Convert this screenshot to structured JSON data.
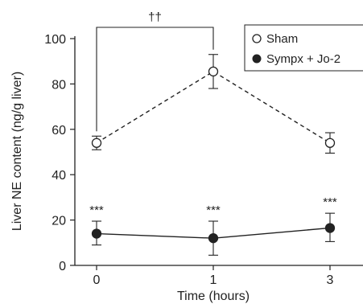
{
  "chart_data": {
    "type": "line",
    "title": "",
    "xlabel": "Time (hours)",
    "ylabel": "Liver NE content (ng/g liver)",
    "x_categories": [
      "0",
      "1",
      "3"
    ],
    "ylim": [
      0,
      100
    ],
    "yticks": [
      0,
      20,
      40,
      60,
      80,
      100
    ],
    "grid": false,
    "legend_position": "top-right",
    "series": [
      {
        "name": "Sham",
        "marker": "open-circle",
        "line_style": "dashed",
        "values": [
          54,
          85.5,
          54
        ],
        "error_upper": [
          57,
          93,
          58.5
        ],
        "error_lower": [
          51,
          78,
          49.5
        ]
      },
      {
        "name": "Sympx + Jo-2",
        "marker": "filled-circle",
        "line_style": "solid",
        "values": [
          14,
          12,
          16.5
        ],
        "error_upper": [
          19.5,
          19.5,
          23
        ],
        "error_lower": [
          9,
          4.5,
          10.5
        ]
      }
    ],
    "annotations": {
      "significance_marks": [
        "***",
        "***",
        "***"
      ],
      "bracket_label": "††",
      "bracket_between": [
        "0",
        "1"
      ]
    }
  }
}
